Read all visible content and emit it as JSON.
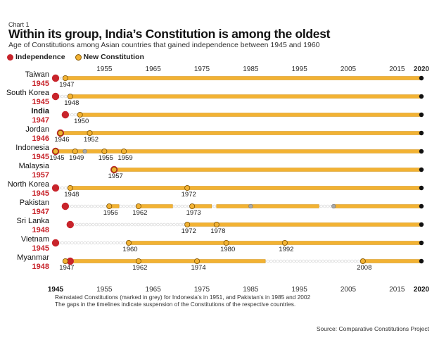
{
  "header": {
    "label": "Chart 1",
    "title": "Within its group, India’s Constitution is among the oldest",
    "subtitle": "Age of Constitutions among Asian countries that gained independence between 1945 and 1960"
  },
  "legend": {
    "independence": "Independence",
    "new_constitution": "New Constitution"
  },
  "notes": {
    "line1": "Reinstated Constitutions (marked in grey) for Indonesia’s in 1951, and Pakistan’s in 1985 and 2002",
    "line2": "The gaps in the timelines indicate suspension of the Constitutions of the respective countries."
  },
  "source": "Source: Comparative Constitutions Project",
  "colors": {
    "independence": "#c8242b",
    "constitution": "#f2b233",
    "reinstated": "#a8a8a8",
    "timeline": "#f2b233"
  },
  "chart_data": {
    "type": "timeline",
    "title": "Within its group, India’s Constitution is among the oldest",
    "xlim": [
      1945,
      2020
    ],
    "top_ticks": [
      "1955",
      "1965",
      "1975",
      "1985",
      "1995",
      "2005",
      "2015",
      "2020"
    ],
    "bottom_ticks": [
      "1945",
      "1955",
      "1965",
      "1975",
      "1985",
      "1995",
      "2005",
      "2015",
      "2020"
    ],
    "countries": [
      {
        "name": "Taiwan",
        "independence": "1945",
        "constitutions": [
          "1947"
        ],
        "reinstated": [],
        "active": [
          [
            1947,
            2020
          ]
        ]
      },
      {
        "name": "South Korea",
        "independence": "1945",
        "constitutions": [
          "1948"
        ],
        "reinstated": [],
        "active": [
          [
            1948,
            2020
          ]
        ]
      },
      {
        "name": "India",
        "independence": "1947",
        "constitutions": [
          "1950"
        ],
        "reinstated": [],
        "active": [
          [
            1950,
            2020
          ]
        ]
      },
      {
        "name": "Jordan",
        "independence": "1946",
        "constitutions": [
          "1946",
          "1952"
        ],
        "reinstated": [],
        "active": [
          [
            1946,
            2020
          ]
        ]
      },
      {
        "name": "Indonesia",
        "independence": "1945",
        "constitutions": [
          "1945",
          "1949",
          "1955",
          "1959"
        ],
        "reinstated": [
          1951
        ],
        "active": [
          [
            1945,
            2020
          ]
        ]
      },
      {
        "name": "Malaysia",
        "independence": "1957",
        "constitutions": [
          "1957"
        ],
        "reinstated": [],
        "active": [
          [
            1957,
            2020
          ]
        ]
      },
      {
        "name": "North Korea",
        "independence": "1945",
        "constitutions": [
          "1948",
          "1972"
        ],
        "reinstated": [],
        "active": [
          [
            1948,
            2020
          ]
        ]
      },
      {
        "name": "Pakistan",
        "independence": "1947",
        "constitutions": [
          "1956",
          "1962",
          "1973"
        ],
        "reinstated": [
          1985,
          2002
        ],
        "active": [
          [
            1956,
            1958
          ],
          [
            1962,
            1969
          ],
          [
            1973,
            1977
          ],
          [
            1978,
            1999
          ],
          [
            2002,
            2020
          ]
        ]
      },
      {
        "name": "Sri Lanka",
        "independence": "1948",
        "constitutions": [
          "1972",
          "1978"
        ],
        "reinstated": [],
        "active": [
          [
            1972,
            2020
          ]
        ]
      },
      {
        "name": "Vietnam",
        "independence": "1945",
        "constitutions": [
          "1960",
          "1980",
          "1992"
        ],
        "reinstated": [],
        "active": [
          [
            1960,
            2020
          ]
        ]
      },
      {
        "name": "Myanmar",
        "independence": "1948",
        "constitutions": [
          "1947",
          "1962",
          "1974",
          "2008"
        ],
        "reinstated": [],
        "active": [
          [
            1947,
            1962
          ],
          [
            1962,
            1988
          ],
          [
            2008,
            2020
          ]
        ]
      }
    ]
  }
}
